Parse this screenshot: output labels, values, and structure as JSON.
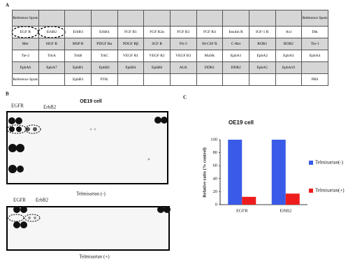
{
  "panel_a": {
    "label": "A",
    "table": {
      "rows": [
        [
          "Reference Spots",
          null,
          null,
          null,
          null,
          null,
          null,
          null,
          null,
          null,
          null,
          "Reference Spots"
        ],
        [
          "EGF R",
          "ErbB2",
          "ErbB3",
          "ErbB4",
          "FGF R1",
          "FGF R2α",
          "FGF R3",
          "FGF R4",
          "Insulin R",
          "IGF-1 R",
          "Axl",
          "Dtk"
        ],
        [
          "Mer",
          "HGF R",
          "MSP R",
          "PDGF Rα",
          "PDGF Rβ",
          "SCF R",
          "Flt-3",
          "M-CSF R",
          "C-Ret",
          "ROR1",
          "ROR2",
          "Tie-1"
        ],
        [
          "Tie-2",
          "TrkA",
          "TrkB",
          "TrkC",
          "VEGF R1",
          "VEGF R2",
          "VEGF R3",
          "MuSK",
          "EphA1",
          "EphA2",
          "EphA3",
          "EphA4"
        ],
        [
          "EphA6",
          "EphA7",
          "EphB1",
          "EphB2",
          "EphB4",
          "EphB6",
          "ALK",
          "DDR1",
          "DDR2",
          "EphA5",
          "EphA10",
          null
        ],
        [
          "Reference Spots",
          null,
          "EphB3",
          "PYK",
          null,
          null,
          null,
          null,
          null,
          null,
          null,
          "PBS"
        ]
      ]
    }
  },
  "panel_b": {
    "label": "B",
    "title": "OE19 cell",
    "blots": [
      {
        "labels": [
          "EGFR",
          "ErbB2"
        ],
        "caption": "Telmisartan (-)"
      },
      {
        "labels": [
          "EGFR",
          "ErbB2"
        ],
        "caption": "Telmisartan (+)"
      }
    ]
  },
  "chart_data": {
    "type": "bar",
    "label": "C",
    "title": "OE19 cell",
    "y_label": "Relative ratio (% control)",
    "categories": [
      "EGFR",
      "ErbB2"
    ],
    "series": [
      {
        "name": "Telmisartan(-)",
        "color": "#3a5be8",
        "values": [
          100,
          100
        ]
      },
      {
        "name": "Telmisartan(+)",
        "color": "#ee1c1c",
        "values": [
          12,
          17
        ]
      }
    ],
    "ylim": [
      0,
      100
    ],
    "yticks": [
      0,
      20,
      40,
      60,
      80,
      100
    ],
    "legend": "right"
  }
}
